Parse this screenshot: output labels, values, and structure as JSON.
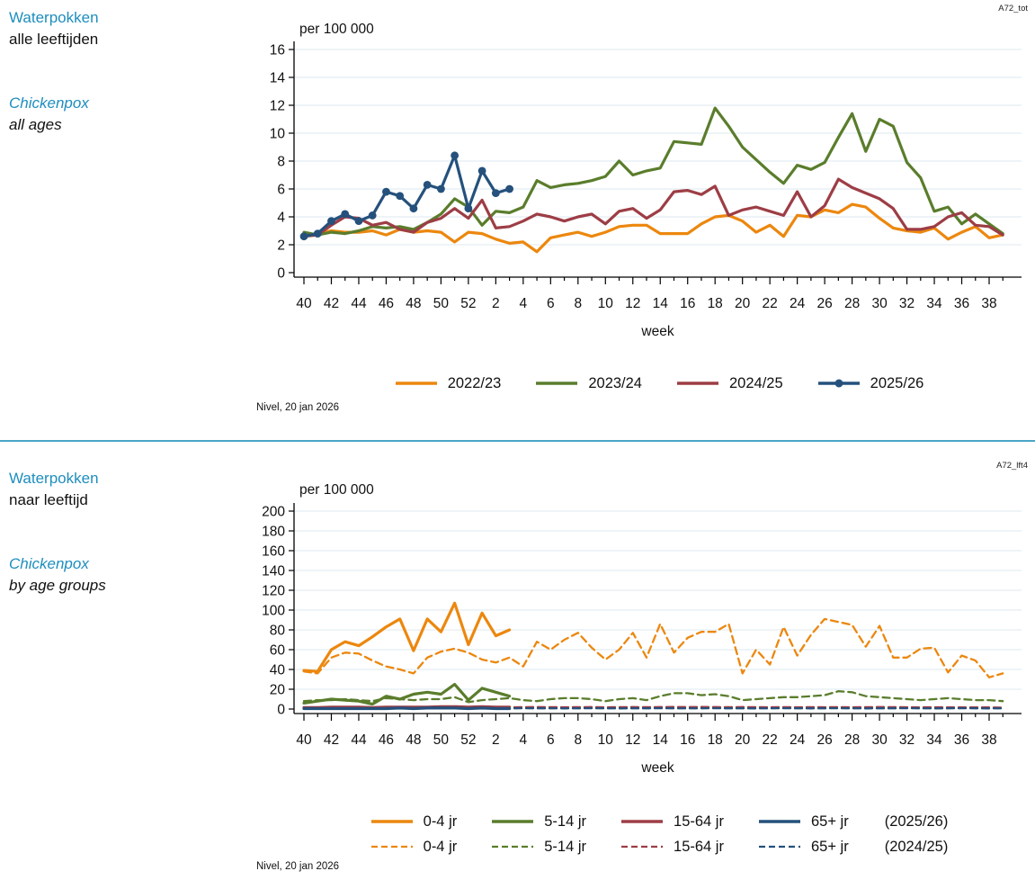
{
  "page": {
    "panels": [
      {
        "title_nl_1": "Waterpokken",
        "title_nl_2": "alle leeftijden",
        "title_en_1": "Chickenpox",
        "title_en_2": "all ages",
        "corner_code": "A72_tot",
        "footer": "Nivel, 20 jan 2026"
      },
      {
        "title_nl_1": "Waterpokken",
        "title_nl_2": "naar leeftijd",
        "title_en_1": "Chickenpox",
        "title_en_2": "by age groups",
        "corner_code": "A72_lft4",
        "footer": "Nivel, 20 jan 2026"
      }
    ]
  },
  "colors": {
    "orange": "#EC870E",
    "green": "#5A7D2C",
    "red": "#9D3D45",
    "blue": "#25517C",
    "header_blue": "#1D8EBE",
    "divider": "#4AA6C8",
    "grid": "#E4EDF4",
    "axis": "#000000",
    "text": "#111111"
  },
  "chart_data": [
    {
      "type": "line",
      "title": "Waterpokken alle leeftijden / Chickenpox all ages",
      "ylabel": "per 100 000",
      "xlabel": "week",
      "ylim": [
        0,
        16
      ],
      "ytick_step": 2,
      "grid": true,
      "legend_position": "bottom",
      "x_weeks": [
        "40",
        "41",
        "42",
        "43",
        "44",
        "45",
        "46",
        "47",
        "48",
        "49",
        "50",
        "51",
        "52",
        "1",
        "2",
        "3",
        "4",
        "5",
        "6",
        "7",
        "8",
        "9",
        "10",
        "11",
        "12",
        "13",
        "14",
        "15",
        "16",
        "17",
        "18",
        "19",
        "20",
        "21",
        "22",
        "23",
        "24",
        "25",
        "26",
        "27",
        "28",
        "29",
        "30",
        "31",
        "32",
        "33",
        "34",
        "35",
        "36",
        "37",
        "38",
        "39"
      ],
      "series": [
        {
          "name": "2022/23",
          "color_key": "orange",
          "style": "solid",
          "marker": false,
          "values": [
            2.7,
            2.8,
            3.0,
            2.9,
            2.9,
            3.0,
            2.7,
            3.1,
            2.9,
            3.0,
            2.9,
            2.2,
            2.9,
            2.8,
            2.4,
            2.1,
            2.2,
            1.5,
            2.5,
            2.7,
            2.9,
            2.6,
            2.9,
            3.3,
            3.4,
            3.4,
            2.8,
            2.8,
            2.8,
            3.5,
            4.0,
            4.1,
            3.7,
            2.9,
            3.4,
            2.6,
            4.1,
            4.0,
            4.5,
            4.3,
            4.9,
            4.7,
            3.9,
            3.2,
            3.0,
            2.9,
            3.2,
            2.4,
            2.9,
            3.3,
            2.5,
            2.7
          ]
        },
        {
          "name": "2023/24",
          "color_key": "green",
          "style": "solid",
          "marker": false,
          "values": [
            2.9,
            2.7,
            2.9,
            2.8,
            3.0,
            3.3,
            3.2,
            3.3,
            3.1,
            3.6,
            4.2,
            5.3,
            4.7,
            3.4,
            4.4,
            4.3,
            4.7,
            6.6,
            6.1,
            6.3,
            6.4,
            6.6,
            6.9,
            8.0,
            7.0,
            7.3,
            7.5,
            9.4,
            9.3,
            9.2,
            11.8,
            10.5,
            9.0,
            8.1,
            7.2,
            6.4,
            7.7,
            7.4,
            7.9,
            9.7,
            11.4,
            8.7,
            11.0,
            10.5,
            7.9,
            6.8,
            4.4,
            4.7,
            3.5,
            4.2,
            3.5,
            2.8
          ]
        },
        {
          "name": "2024/25",
          "color_key": "red",
          "style": "solid",
          "marker": false,
          "values": [
            2.6,
            2.7,
            3.4,
            4.0,
            3.9,
            3.4,
            3.6,
            3.1,
            2.9,
            3.6,
            3.9,
            4.6,
            3.9,
            5.2,
            3.2,
            3.3,
            3.7,
            4.2,
            4.0,
            3.7,
            4.0,
            4.2,
            3.5,
            4.4,
            4.6,
            3.9,
            4.5,
            5.8,
            5.9,
            5.6,
            6.2,
            4.1,
            4.5,
            4.7,
            4.4,
            4.1,
            5.8,
            4.0,
            4.8,
            6.7,
            6.1,
            5.7,
            5.3,
            4.6,
            3.1,
            3.1,
            3.3,
            4.0,
            4.3,
            3.4,
            3.3,
            2.7
          ]
        },
        {
          "name": "2025/26",
          "color_key": "blue",
          "style": "solid",
          "marker": true,
          "values": [
            2.6,
            2.8,
            3.7,
            4.2,
            3.7,
            4.1,
            5.8,
            5.5,
            4.6,
            6.3,
            6.0,
            8.4,
            4.6,
            7.3,
            5.7,
            6.0
          ]
        }
      ]
    },
    {
      "type": "line",
      "title": "Waterpokken naar leeftijd / Chickenpox by age groups",
      "ylabel": "per 100 000",
      "xlabel": "week",
      "ylim": [
        0,
        200
      ],
      "ytick_step": 20,
      "grid": true,
      "legend_position": "bottom",
      "x_weeks": [
        "40",
        "41",
        "42",
        "43",
        "44",
        "45",
        "46",
        "47",
        "48",
        "49",
        "50",
        "51",
        "52",
        "1",
        "2",
        "3",
        "4",
        "5",
        "6",
        "7",
        "8",
        "9",
        "10",
        "11",
        "12",
        "13",
        "14",
        "15",
        "16",
        "17",
        "18",
        "19",
        "20",
        "21",
        "22",
        "23",
        "24",
        "25",
        "26",
        "27",
        "28",
        "29",
        "30",
        "31",
        "32",
        "33",
        "34",
        "35",
        "36",
        "37",
        "38",
        "39"
      ],
      "legend_rows": [
        {
          "style": "solid",
          "season": "(2025/26)"
        },
        {
          "style": "dashed",
          "season": "(2024/25)"
        }
      ],
      "series": [
        {
          "name": "0-4 jr",
          "color_key": "orange",
          "style": "dashed",
          "marker": false,
          "values": [
            38,
            36,
            52,
            57,
            56,
            49,
            43,
            40,
            36,
            52,
            58,
            61,
            57,
            50,
            47,
            52,
            43,
            68,
            60,
            70,
            77,
            62,
            50,
            60,
            77,
            52,
            86,
            57,
            72,
            78,
            78,
            86,
            36,
            60,
            45,
            83,
            54,
            75,
            91,
            88,
            85,
            63,
            84,
            52,
            52,
            61,
            62,
            37,
            54,
            49,
            32,
            36
          ]
        },
        {
          "name": "5-14 jr",
          "color_key": "green",
          "style": "dashed",
          "marker": false,
          "values": [
            8,
            9,
            9,
            10,
            9,
            8,
            11,
            10,
            9,
            10,
            10,
            12,
            7,
            9,
            10,
            11,
            9,
            8,
            10,
            11,
            11,
            10,
            8,
            10,
            11,
            9,
            13,
            16,
            16,
            14,
            15,
            13,
            9,
            10,
            11,
            12,
            12,
            13,
            14,
            18,
            17,
            13,
            12,
            11,
            10,
            9,
            10,
            11,
            10,
            9,
            9,
            8
          ]
        },
        {
          "name": "15-64 jr",
          "color_key": "red",
          "style": "dashed",
          "marker": false,
          "values": [
            1.5,
            1.6,
            1.7,
            1.8,
            1.8,
            1.7,
            1.8,
            1.9,
            1.8,
            1.9,
            2.0,
            2.1,
            1.9,
            2.0,
            1.9,
            1.8,
            1.9,
            2.0,
            1.9,
            1.8,
            1.9,
            2.0,
            1.8,
            1.9,
            2.0,
            1.9,
            2.0,
            2.1,
            2.0,
            2.1,
            2.0,
            1.9,
            2.0,
            1.9,
            1.8,
            1.9,
            1.8,
            1.9,
            1.8,
            1.9,
            1.8,
            1.9,
            2.0,
            1.9,
            1.8,
            1.7,
            1.8,
            1.7,
            1.6,
            1.7,
            1.6,
            1.5
          ]
        },
        {
          "name": "65+ jr",
          "color_key": "blue",
          "style": "dashed",
          "marker": false,
          "values": [
            0.7,
            0.8,
            0.7,
            0.6,
            0.7,
            0.8,
            0.7,
            0.7,
            0.8,
            0.7,
            0.6,
            0.7,
            0.8,
            0.7,
            0.6,
            0.7,
            0.8,
            0.7,
            0.7,
            0.6,
            0.7,
            0.8,
            0.7,
            0.6,
            0.7,
            0.7,
            0.8,
            0.7,
            0.6,
            0.7,
            0.8,
            0.7,
            0.7,
            0.6,
            0.7,
            0.8,
            0.7,
            0.6,
            0.7,
            0.8,
            0.7,
            0.6,
            0.7,
            0.7,
            0.8,
            0.7,
            0.6,
            0.7,
            0.8,
            0.7,
            0.6,
            0.7
          ]
        },
        {
          "name": "0-4 jr",
          "color_key": "orange",
          "style": "solid",
          "marker": false,
          "values": [
            39,
            38,
            60,
            68,
            64,
            73,
            83,
            91,
            59,
            91,
            78,
            107,
            65,
            97,
            74,
            80
          ]
        },
        {
          "name": "5-14 jr",
          "color_key": "green",
          "style": "solid",
          "marker": false,
          "values": [
            6,
            8,
            10,
            9,
            8,
            5,
            13,
            10,
            15,
            17,
            15,
            25,
            9,
            21,
            17,
            13
          ]
        },
        {
          "name": "15-64 jr",
          "color_key": "red",
          "style": "solid",
          "marker": false,
          "values": [
            1.5,
            1.5,
            2,
            2,
            2,
            1.5,
            2,
            2,
            2,
            2,
            2.5,
            2.5,
            2,
            2.5,
            2,
            2
          ]
        },
        {
          "name": "65+ jr",
          "color_key": "blue",
          "style": "solid",
          "marker": false,
          "values": [
            0.5,
            0.5,
            0.5,
            0.5,
            0.5,
            0.5,
            0.5,
            1,
            0.5,
            1,
            1,
            1,
            0.5,
            1,
            0.5,
            0.5
          ]
        }
      ]
    }
  ]
}
